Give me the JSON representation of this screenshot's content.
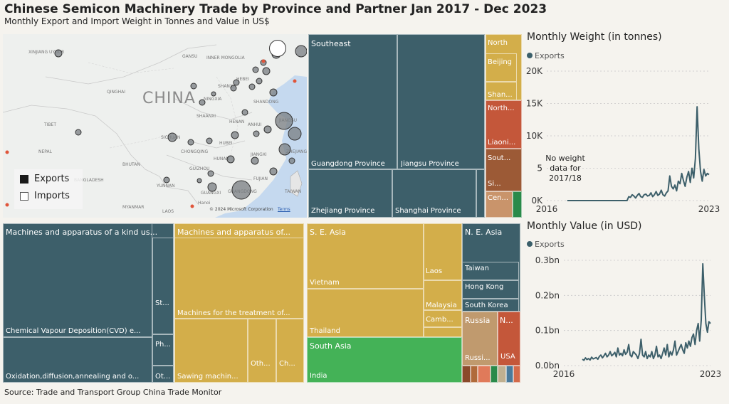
{
  "header": {
    "title": "Chinese Semicon Machinery Trade by Province and Partner Jan 2017 - Dec 2023",
    "subtitle": "Monthly Export and Import Weight in Tonnes and Value in US$",
    "source": "Source: Trade and Transport Group China Trade Monitor"
  },
  "colors": {
    "exports": "#3d5f6a",
    "imports": "#d3ae4a"
  },
  "map": {
    "country_label": "CHINA",
    "copyright": "© 2024 Microsoft Corporation",
    "terms": "Terms",
    "place_labels": [
      "XINJIANG UYGUR",
      "QINGHAI",
      "TIBET",
      "NEPAL",
      "BHUTAN",
      "BANGLADESH",
      "MYANMAR",
      "LAOS",
      "YUNNAN",
      "SICHUAN",
      "GANSU",
      "SHAANXI",
      "HENAN",
      "HUBEI",
      "HUNAN",
      "JIANGXI",
      "FUJIAN",
      "ZHEJIANG",
      "GUANGDONG",
      "GUANGXI",
      "GUIZHOU",
      "CHONGQING",
      "SHANDONG",
      "ANHUI",
      "JIANGSU",
      "TAIWAN",
      "HEBEI",
      "SHANXI",
      "Hanoi",
      "INNER MONGOLIA",
      "NINGXIA"
    ],
    "legend": [
      {
        "label": "Exports",
        "color": "#1a1a1a"
      },
      {
        "label": "Imports",
        "color": "#ffffff"
      }
    ]
  },
  "province_treemap": {
    "labels": [
      "Southeast",
      "Guangdong Province",
      "Jiangsu Province",
      "Zhejiang Province",
      "Shanghai Province",
      "North",
      "Beijing",
      "Shan...",
      "North...",
      "Liaoni...",
      "Sout...",
      "Si...",
      "Cen..."
    ]
  },
  "product_treemap": {
    "labels": [
      "Machines and apparatus of a kind us...",
      "Chemical Vapour Deposition(CVD) e...",
      "Oxidation,diffusion,annealing and o...",
      "St...",
      "Ph...",
      "Ot...",
      "Machines and apparatus of...",
      "Machines for the treatment of...",
      "Sawing machin...",
      "Oth...",
      "Ch..."
    ]
  },
  "partner_treemap": {
    "labels": [
      "S. E. Asia",
      "Vietnam",
      "Thailand",
      "Laos",
      "Malaysia",
      "Camb...",
      "N. E. Asia",
      "Taiwan",
      "Hong Kong",
      "South Korea",
      "Russia",
      "Russi...",
      "N...",
      "USA",
      "South Asia",
      "India"
    ]
  },
  "weight_panel": {
    "title": "Monthly Weight (in tonnes)",
    "legend": "Exports",
    "annotation_lines": [
      "No weight",
      "data for",
      "2017/18"
    ]
  },
  "value_panel": {
    "title": "Monthly Value (in USD)",
    "legend": "Exports"
  },
  "chart_data": [
    {
      "type": "line",
      "title": "Monthly Weight (in tonnes)",
      "series": [
        {
          "name": "Exports",
          "values": [
            0,
            0,
            0,
            0,
            0,
            0,
            0,
            0,
            0,
            0,
            0,
            0,
            0,
            0,
            0,
            0,
            0,
            0,
            0,
            0,
            0,
            0,
            0,
            0,
            0,
            0,
            0,
            0,
            0,
            0,
            0,
            0,
            0,
            0,
            0,
            0,
            600,
            500,
            900,
            700,
            400,
            800,
            1100,
            600,
            500,
            900,
            1000,
            700,
            800,
            1200,
            600,
            900,
            1400,
            800,
            1000,
            1600,
            900,
            700,
            1200,
            1500,
            3800,
            2200,
            1800,
            2400,
            1500,
            3000,
            2600,
            4200,
            3100,
            2200,
            3600,
            4500,
            2800,
            5000,
            3500,
            6500,
            14500,
            8000,
            4500,
            3000,
            4800,
            3800,
            4200,
            4000
          ]
        }
      ],
      "x_range": [
        "2016-01",
        "2023-12"
      ],
      "start": "2017-01",
      "xticks": [
        "2016",
        "2023"
      ],
      "yticks": [
        "0K",
        "5",
        "10K",
        "15K",
        "20K"
      ],
      "ylim": [
        0,
        20000
      ]
    },
    {
      "type": "line",
      "title": "Monthly Value (in USD)",
      "series": [
        {
          "name": "Exports",
          "values": [
            0.018,
            0.015,
            0.022,
            0.017,
            0.02,
            0.016,
            0.024,
            0.019,
            0.021,
            0.023,
            0.018,
            0.026,
            0.03,
            0.022,
            0.028,
            0.035,
            0.025,
            0.03,
            0.04,
            0.028,
            0.032,
            0.038,
            0.025,
            0.05,
            0.03,
            0.035,
            0.028,
            0.045,
            0.032,
            0.038,
            0.06,
            0.03,
            0.025,
            0.04,
            0.035,
            0.03,
            0.02,
            0.035,
            0.075,
            0.03,
            0.025,
            0.04,
            0.02,
            0.03,
            0.025,
            0.04,
            0.02,
            0.03,
            0.055,
            0.025,
            0.03,
            0.02,
            0.035,
            0.05,
            0.03,
            0.06,
            0.025,
            0.04,
            0.03,
            0.045,
            0.07,
            0.03,
            0.04,
            0.05,
            0.06,
            0.045,
            0.035,
            0.065,
            0.05,
            0.07,
            0.055,
            0.08,
            0.09,
            0.06,
            0.1,
            0.12,
            0.07,
            0.13,
            0.29,
            0.2,
            0.12,
            0.095,
            0.125,
            0.12
          ]
        }
      ],
      "x_range": [
        "2016-01",
        "2023-12"
      ],
      "start": "2017-01",
      "xticks": [
        "2016",
        "2023"
      ],
      "yticks": [
        "0.0bn",
        "0.1bn",
        "0.2bn",
        "0.3bn"
      ],
      "ylim": [
        0,
        0.3
      ]
    }
  ]
}
